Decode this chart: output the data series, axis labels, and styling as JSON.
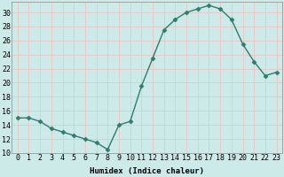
{
  "x": [
    0,
    1,
    2,
    3,
    4,
    5,
    6,
    7,
    8,
    9,
    10,
    11,
    12,
    13,
    14,
    15,
    16,
    17,
    18,
    19,
    20,
    21,
    22,
    23
  ],
  "y": [
    15,
    15,
    14.5,
    13.5,
    13,
    12.5,
    12,
    11.5,
    10.5,
    14,
    14.5,
    19.5,
    23.5,
    27.5,
    29,
    30,
    30.5,
    31,
    30.5,
    29,
    25.5,
    23,
    21,
    21.5
  ],
  "line_color": "#2e7d6e",
  "marker": "D",
  "marker_size": 2.5,
  "bg_color": "#cceae7",
  "grid_color": "#e8c8c8",
  "xlabel": "Humidex (Indice chaleur)",
  "ylim": [
    10,
    31.5
  ],
  "xlim": [
    -0.5,
    23.5
  ],
  "yticks": [
    10,
    12,
    14,
    16,
    18,
    20,
    22,
    24,
    26,
    28,
    30
  ],
  "xticks": [
    0,
    1,
    2,
    3,
    4,
    5,
    6,
    7,
    8,
    9,
    10,
    11,
    12,
    13,
    14,
    15,
    16,
    17,
    18,
    19,
    20,
    21,
    22,
    23
  ],
  "font_size_axis": 6,
  "font_size_label": 6.5,
  "line_width": 1.0
}
